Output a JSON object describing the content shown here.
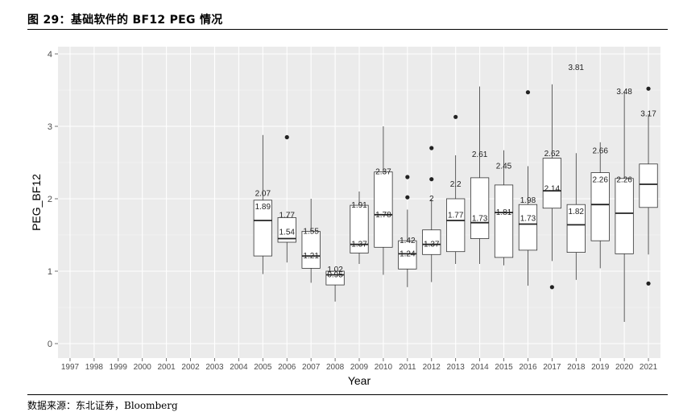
{
  "header": {
    "title": "图 29：基础软件的 BF12 PEG 情况"
  },
  "footer": {
    "source": "数据来源：东北证券，Bloomberg"
  },
  "chart_data": {
    "type": "boxplot",
    "xlabel": "Year",
    "ylabel": "PEG_BF12",
    "ylim": [
      -0.2,
      4.1
    ],
    "yticks": [
      0,
      1,
      2,
      3,
      4
    ],
    "categories": [
      "1997",
      "1998",
      "1999",
      "2000",
      "2001",
      "2002",
      "2003",
      "2004",
      "2005",
      "2006",
      "2007",
      "2008",
      "2009",
      "2010",
      "2011",
      "2012",
      "2013",
      "2014",
      "2015",
      "2016",
      "2017",
      "2018",
      "2019",
      "2020",
      "2021"
    ],
    "grid": true,
    "background": "#ebebeb",
    "boxes": [
      {
        "year": "2005",
        "low": 0.96,
        "q1": 1.21,
        "median": 1.7,
        "q3": 1.98,
        "high": 2.88,
        "outliers": []
      },
      {
        "year": "2006",
        "low": 1.12,
        "q1": 1.4,
        "median": 1.45,
        "q3": 1.74,
        "high": 1.76,
        "outliers": [
          2.85
        ]
      },
      {
        "year": "2007",
        "low": 0.84,
        "q1": 1.04,
        "median": 1.21,
        "q3": 1.55,
        "high": 2.0,
        "outliers": []
      },
      {
        "year": "2008",
        "low": 0.58,
        "q1": 0.81,
        "median": 0.95,
        "q3": 1.0,
        "high": 1.02,
        "outliers": []
      },
      {
        "year": "2009",
        "low": 1.1,
        "q1": 1.25,
        "median": 1.37,
        "q3": 1.91,
        "high": 2.1,
        "outliers": []
      },
      {
        "year": "2010",
        "low": 0.95,
        "q1": 1.33,
        "median": 1.78,
        "q3": 2.37,
        "high": 3.0,
        "outliers": []
      },
      {
        "year": "2011",
        "low": 0.78,
        "q1": 1.03,
        "median": 1.24,
        "q3": 1.42,
        "high": 1.85,
        "outliers": [
          2.02,
          2.3
        ]
      },
      {
        "year": "2012",
        "low": 0.85,
        "q1": 1.23,
        "median": 1.37,
        "q3": 1.57,
        "high": 1.99,
        "outliers": [
          2.27,
          2.7
        ]
      },
      {
        "year": "2013",
        "low": 1.1,
        "q1": 1.27,
        "median": 1.7,
        "q3": 2.0,
        "high": 2.6,
        "outliers": [
          3.13
        ]
      },
      {
        "year": "2014",
        "low": 1.1,
        "q1": 1.45,
        "median": 1.67,
        "q3": 2.29,
        "high": 3.55,
        "outliers": []
      },
      {
        "year": "2015",
        "low": 1.08,
        "q1": 1.19,
        "median": 1.81,
        "q3": 2.19,
        "high": 2.67,
        "outliers": []
      },
      {
        "year": "2016",
        "low": 0.8,
        "q1": 1.29,
        "median": 1.65,
        "q3": 1.92,
        "high": 2.45,
        "outliers": [
          3.47
        ]
      },
      {
        "year": "2017",
        "low": 1.14,
        "q1": 1.87,
        "median": 2.11,
        "q3": 2.56,
        "high": 3.58,
        "outliers": [
          0.78
        ]
      },
      {
        "year": "2018",
        "low": 0.88,
        "q1": 1.26,
        "median": 1.64,
        "q3": 1.92,
        "high": 2.63,
        "outliers": []
      },
      {
        "year": "2019",
        "low": 1.04,
        "q1": 1.42,
        "median": 1.92,
        "q3": 2.36,
        "high": 2.78,
        "outliers": []
      },
      {
        "year": "2020",
        "low": 0.3,
        "q1": 1.24,
        "median": 1.8,
        "q3": 2.28,
        "high": 3.48,
        "outliers": []
      },
      {
        "year": "2021",
        "low": 1.23,
        "q1": 1.88,
        "median": 2.2,
        "q3": 2.48,
        "high": 3.17,
        "outliers": [
          3.52,
          0.83
        ]
      }
    ],
    "annotations": [
      {
        "year": "2005",
        "text": "2.07",
        "y": 2.07
      },
      {
        "year": "2005",
        "text": "1.89",
        "y": 1.89
      },
      {
        "year": "2006",
        "text": "1.77",
        "y": 1.77
      },
      {
        "year": "2006",
        "text": "1.54",
        "y": 1.54
      },
      {
        "year": "2007",
        "text": "1.55",
        "y": 1.55
      },
      {
        "year": "2007",
        "text": "1.21",
        "y": 1.21
      },
      {
        "year": "2008",
        "text": "1.02",
        "y": 1.02
      },
      {
        "year": "2008",
        "text": "0.95",
        "y": 0.95
      },
      {
        "year": "2009",
        "text": "1.91",
        "y": 1.91
      },
      {
        "year": "2009",
        "text": "1.37",
        "y": 1.37
      },
      {
        "year": "2010",
        "text": "2.37",
        "y": 2.37
      },
      {
        "year": "2010",
        "text": "1.78",
        "y": 1.78
      },
      {
        "year": "2011",
        "text": "1.42",
        "y": 1.42
      },
      {
        "year": "2011",
        "text": "1.24",
        "y": 1.24
      },
      {
        "year": "2012",
        "text": "2",
        "y": 2.0
      },
      {
        "year": "2012",
        "text": "1.37",
        "y": 1.37
      },
      {
        "year": "2013",
        "text": "2.2",
        "y": 2.2
      },
      {
        "year": "2013",
        "text": "1.77",
        "y": 1.77
      },
      {
        "year": "2014",
        "text": "2.61",
        "y": 2.61
      },
      {
        "year": "2014",
        "text": "1.73",
        "y": 1.73
      },
      {
        "year": "2015",
        "text": "2.45",
        "y": 2.45
      },
      {
        "year": "2015",
        "text": "1.81",
        "y": 1.81
      },
      {
        "year": "2016",
        "text": "1.98",
        "y": 1.98
      },
      {
        "year": "2016",
        "text": "1.73",
        "y": 1.73
      },
      {
        "year": "2017",
        "text": "2.62",
        "y": 2.62
      },
      {
        "year": "2017",
        "text": "2.14",
        "y": 2.14
      },
      {
        "year": "2018",
        "text": "3.81",
        "y": 3.81
      },
      {
        "year": "2018",
        "text": "1.82",
        "y": 1.82
      },
      {
        "year": "2019",
        "text": "2.66",
        "y": 2.66
      },
      {
        "year": "2019",
        "text": "2.26",
        "y": 2.26
      },
      {
        "year": "2020",
        "text": "3.48",
        "y": 3.48
      },
      {
        "year": "2020",
        "text": "2.26",
        "y": 2.26
      },
      {
        "year": "2021",
        "text": "3.17",
        "y": 3.17
      }
    ]
  }
}
